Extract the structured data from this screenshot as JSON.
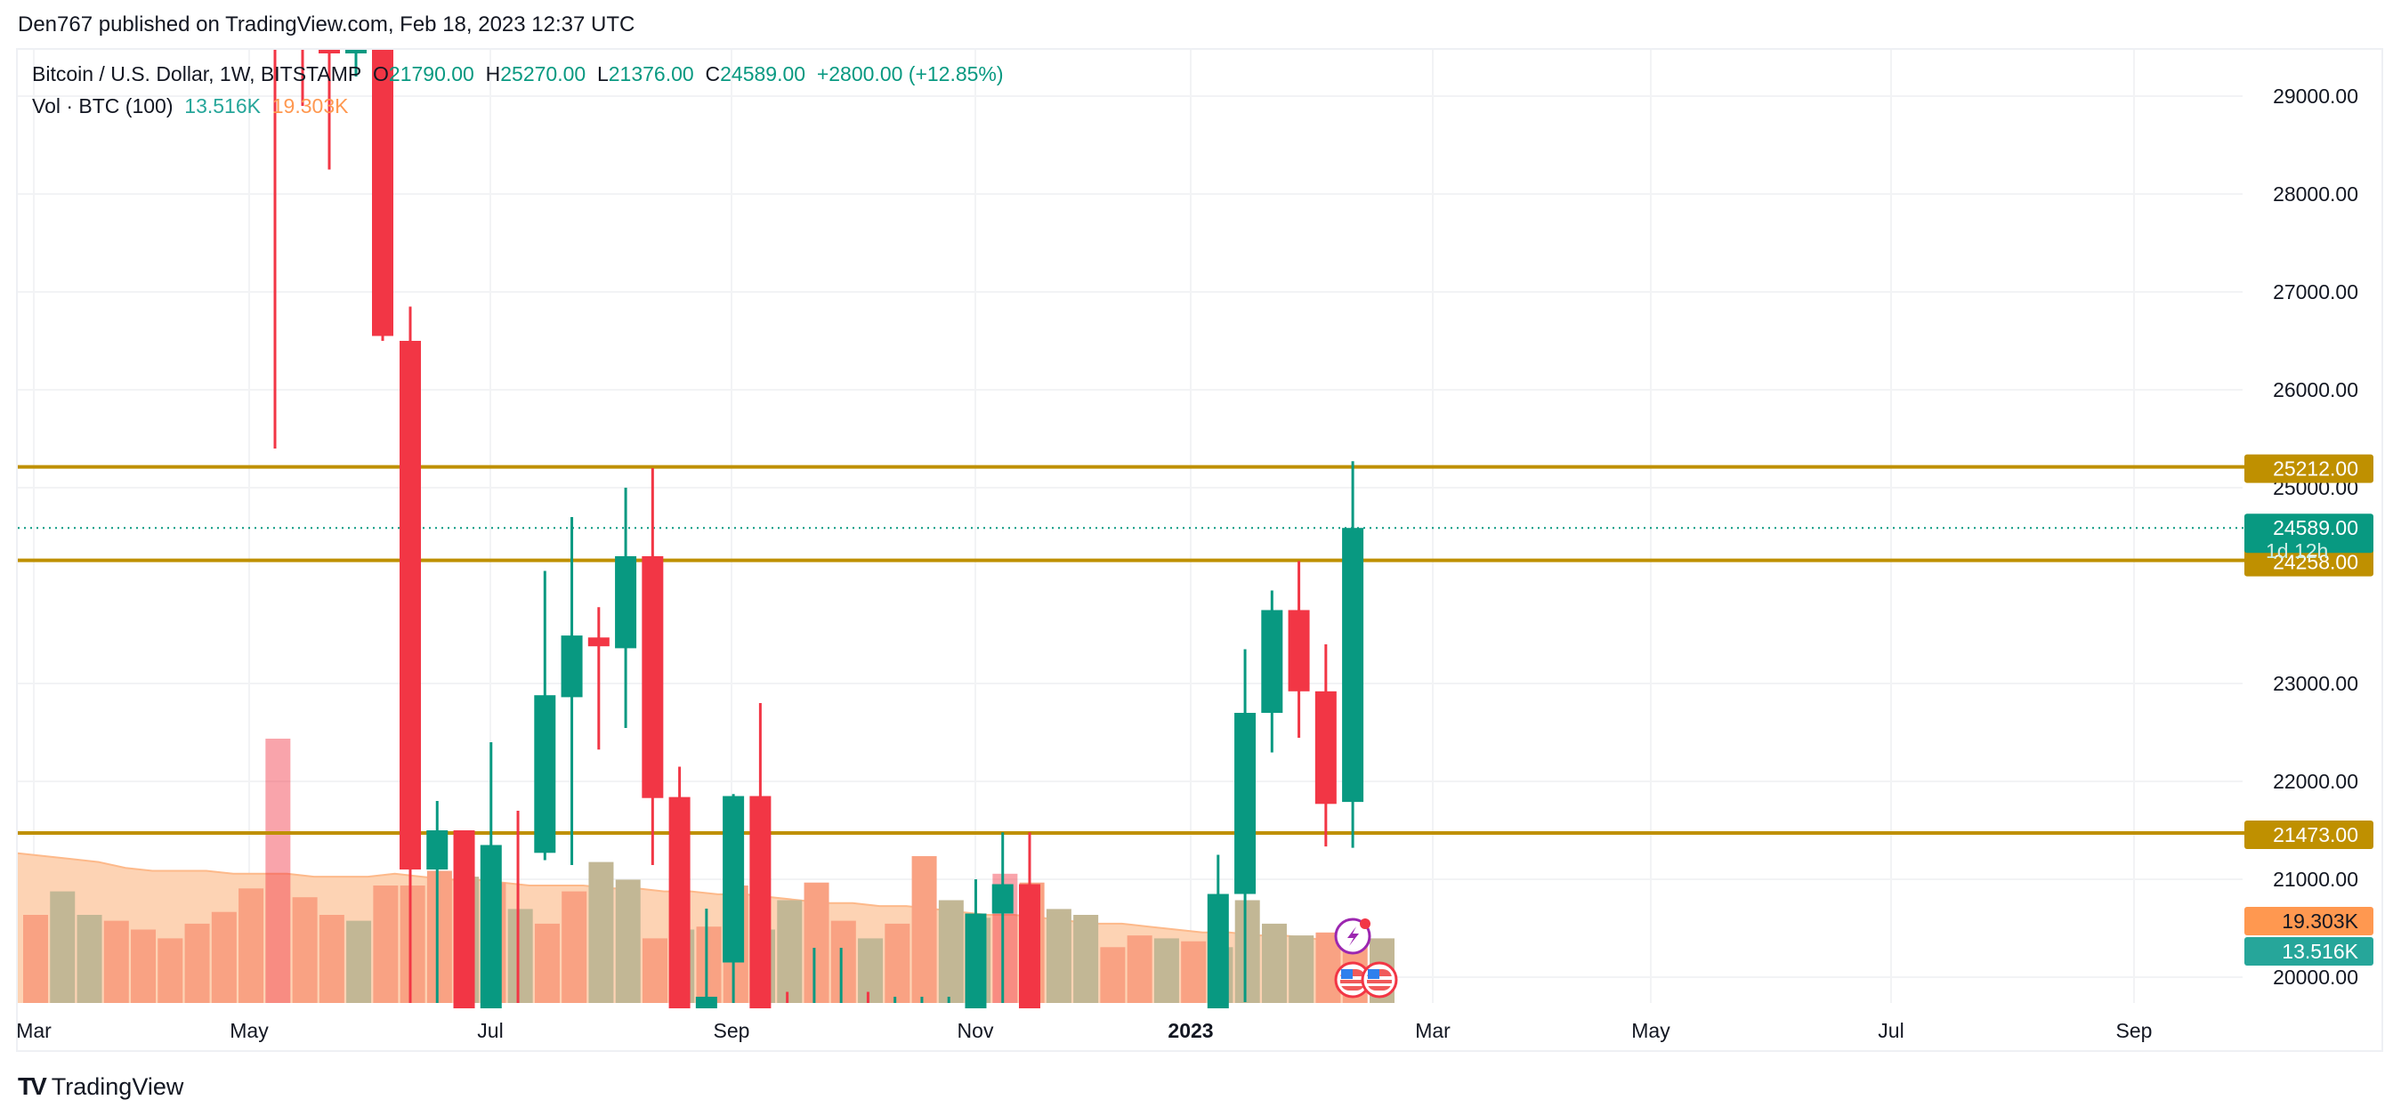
{
  "header": {
    "published": "Den767 published on TradingView.com, Feb 18, 2023 12:37 UTC"
  },
  "legend": {
    "symbol": "Bitcoin / U.S. Dollar, 1W, BITSTAMP",
    "o_label": "O",
    "o": "21790.00",
    "h_label": "H",
    "h": "25270.00",
    "l_label": "L",
    "l": "21376.00",
    "c_label": "C",
    "c": "24589.00",
    "change": "+2800.00 (+12.85%)",
    "vol_label": "Vol · BTC (100)",
    "vol_value": "13.516K",
    "vol_ma": "19.303K"
  },
  "footer": {
    "brand": "TradingView"
  },
  "colors": {
    "up": "#089981",
    "down": "#f23645",
    "level": "#bf9000",
    "vol_up": "#c2b795",
    "vol_down": "#f9a283",
    "vol_ma_fill": "#fdd1b0"
  },
  "chart_data": {
    "type": "candlestick",
    "title": "Bitcoin / U.S. Dollar, 1W, BITSTAMP",
    "timeframe": "1W",
    "y_ticks": [
      29000,
      28000,
      27000,
      26000,
      25000,
      23000,
      22000,
      21000,
      20000
    ],
    "ylim": [
      19700,
      29700
    ],
    "x_ticks": [
      {
        "label": "Mar",
        "x": 38
      },
      {
        "label": "May",
        "x": 280
      },
      {
        "label": "Jul",
        "x": 551
      },
      {
        "label": "Sep",
        "x": 822
      },
      {
        "label": "Nov",
        "x": 1096
      },
      {
        "label": "2023",
        "x": 1338,
        "bold": true
      },
      {
        "label": "Mar",
        "x": 1610
      },
      {
        "label": "May",
        "x": 1855
      },
      {
        "label": "Jul",
        "x": 2125
      },
      {
        "label": "Sep",
        "x": 2398
      }
    ],
    "horizontal_levels": [
      {
        "price": 25212,
        "label": "25212.00"
      },
      {
        "price": 24258,
        "label": "24258.00"
      },
      {
        "price": 21473,
        "label": "21473.00"
      }
    ],
    "last_price": {
      "price": 24589,
      "label": "24589.00",
      "countdown": "1d 12h"
    },
    "volume_labels": {
      "ma": "19.303K",
      "volume": "13.516K"
    },
    "early_wicks": [
      {
        "x": 309,
        "high": 29700,
        "low": 25400,
        "dir": "down"
      },
      {
        "x": 340,
        "high": 29700,
        "low": 28900,
        "dir": "down"
      },
      {
        "x": 370,
        "open": 29700,
        "close": 29580,
        "high": 29700,
        "low": 28250,
        "dir": "down"
      },
      {
        "x": 400,
        "open": 29580,
        "close": 29700,
        "high": 29700,
        "low": 29200,
        "dir": "up"
      },
      {
        "x": 430,
        "open": 29700,
        "close": 26550,
        "high": 29700,
        "low": 26500,
        "dir": "down"
      }
    ],
    "candles": [
      {
        "open": 26500,
        "close": 21100,
        "high": 26850,
        "low": 19700
      },
      {
        "open": 21100,
        "close": 21500,
        "high": 21800,
        "low": 19700
      },
      {
        "open": 21500,
        "close": 19700,
        "high": 21500,
        "low": 19700
      },
      {
        "open": 19700,
        "close": 21350,
        "high": 22400,
        "low": 19700
      },
      {
        "open": 21320,
        "close": 21290,
        "high": 21700,
        "low": 19700
      },
      {
        "open": 21270,
        "close": 22880,
        "high": 24150,
        "low": 21250
      },
      {
        "open": 22860,
        "close": 23490,
        "high": 24700,
        "low": 21200
      },
      {
        "open": 23470,
        "close": 23380,
        "high": 23780,
        "low": 22380
      },
      {
        "open": 23360,
        "close": 24300,
        "high": 25000,
        "low": 22600
      },
      {
        "open": 24300,
        "close": 21830,
        "high": 25200,
        "low": 21200
      },
      {
        "open": 21840,
        "close": 19700,
        "high": 22150,
        "low": 19700
      },
      {
        "open": 19700,
        "close": 19800,
        "high": 20700,
        "low": 19700
      },
      {
        "open": 20150,
        "close": 21850,
        "high": 21870,
        "low": 19700
      },
      {
        "open": 21850,
        "close": 19700,
        "high": 22800,
        "low": 19700
      },
      {
        "open": 19750,
        "close": 19700,
        "high": 19850,
        "low": 19700
      },
      {
        "open": 19700,
        "close": 19750,
        "high": 20300,
        "low": 19700
      },
      {
        "open": 19700,
        "close": 19750,
        "high": 20300,
        "low": 19700
      },
      {
        "open": 19750,
        "close": 19700,
        "high": 19850,
        "low": 19700
      },
      {
        "open": 19700,
        "close": 19720,
        "high": 19800,
        "low": 19700
      },
      {
        "open": 19700,
        "close": 19720,
        "high": 19800,
        "low": 19700
      },
      {
        "open": 19700,
        "close": 19720,
        "high": 19800,
        "low": 19700
      },
      {
        "open": 19700,
        "close": 20650,
        "high": 21000,
        "low": 19700
      },
      {
        "open": 20650,
        "close": 20950,
        "high": 21480,
        "low": 19700
      },
      {
        "open": 20950,
        "close": 19700,
        "high": 21480,
        "low": 19700
      },
      {
        "open": 19700,
        "close": 19700,
        "high": 19700,
        "low": 19700
      },
      {
        "open": 19700,
        "close": 19700,
        "high": 19700,
        "low": 19700
      },
      {
        "open": 19700,
        "close": 19700,
        "high": 19700,
        "low": 19700
      },
      {
        "open": 19700,
        "close": 19700,
        "high": 19700,
        "low": 19700
      },
      {
        "open": 19700,
        "close": 19700,
        "high": 19700,
        "low": 19700
      },
      {
        "open": 19700,
        "close": 19700,
        "high": 19700,
        "low": 19700
      },
      {
        "open": 19700,
        "close": 20850,
        "high": 21250,
        "low": 19700
      },
      {
        "open": 20850,
        "close": 22700,
        "high": 23350,
        "low": 19800
      },
      {
        "open": 22700,
        "close": 23750,
        "high": 23950,
        "low": 22350
      },
      {
        "open": 23750,
        "close": 22920,
        "high": 24250,
        "low": 22500
      },
      {
        "open": 22920,
        "close": 21770,
        "high": 23400,
        "low": 21390
      },
      {
        "open": 21790,
        "close": 24589,
        "high": 25270,
        "low": 21376
      }
    ],
    "volume": [
      {
        "v": 0.3,
        "dir": "down"
      },
      {
        "v": 0.38,
        "dir": "up"
      },
      {
        "v": 0.3,
        "dir": "up"
      },
      {
        "v": 0.28,
        "dir": "down"
      },
      {
        "v": 0.25,
        "dir": "down"
      },
      {
        "v": 0.22,
        "dir": "down"
      },
      {
        "v": 0.27,
        "dir": "down"
      },
      {
        "v": 0.31,
        "dir": "down"
      },
      {
        "v": 0.39,
        "dir": "down"
      },
      {
        "v": 0.9,
        "dir": "down",
        "highlight": true
      },
      {
        "v": 0.36,
        "dir": "down"
      },
      {
        "v": 0.3,
        "dir": "down"
      },
      {
        "v": 0.28,
        "dir": "up"
      },
      {
        "v": 0.4,
        "dir": "down"
      },
      {
        "v": 0.4,
        "dir": "down"
      },
      {
        "v": 0.45,
        "dir": "down"
      },
      {
        "v": 0.43,
        "dir": "up"
      },
      {
        "v": 0.41,
        "dir": "down"
      },
      {
        "v": 0.32,
        "dir": "up"
      },
      {
        "v": 0.27,
        "dir": "down"
      },
      {
        "v": 0.38,
        "dir": "down"
      },
      {
        "v": 0.48,
        "dir": "up"
      },
      {
        "v": 0.42,
        "dir": "up"
      },
      {
        "v": 0.22,
        "dir": "down"
      },
      {
        "v": 0.25,
        "dir": "up"
      },
      {
        "v": 0.26,
        "dir": "down"
      },
      {
        "v": 0.4,
        "dir": "down"
      },
      {
        "v": 0.25,
        "dir": "up"
      },
      {
        "v": 0.35,
        "dir": "up"
      },
      {
        "v": 0.41,
        "dir": "down"
      },
      {
        "v": 0.28,
        "dir": "down"
      },
      {
        "v": 0.22,
        "dir": "up"
      },
      {
        "v": 0.27,
        "dir": "down"
      },
      {
        "v": 0.5,
        "dir": "down"
      },
      {
        "v": 0.35,
        "dir": "up"
      },
      {
        "v": 0.29,
        "dir": "up"
      },
      {
        "v": 0.44,
        "dir": "down",
        "highlight": true
      },
      {
        "v": 0.41,
        "dir": "down"
      },
      {
        "v": 0.32,
        "dir": "up"
      },
      {
        "v": 0.3,
        "dir": "up"
      },
      {
        "v": 0.19,
        "dir": "down"
      },
      {
        "v": 0.23,
        "dir": "down"
      },
      {
        "v": 0.22,
        "dir": "up"
      },
      {
        "v": 0.21,
        "dir": "down"
      },
      {
        "v": 0.19,
        "dir": "up"
      },
      {
        "v": 0.35,
        "dir": "up"
      },
      {
        "v": 0.27,
        "dir": "up"
      },
      {
        "v": 0.23,
        "dir": "up"
      },
      {
        "v": 0.24,
        "dir": "down"
      },
      {
        "v": 0.22,
        "dir": "down"
      },
      {
        "v": 0.22,
        "dir": "up"
      }
    ],
    "volume_ma": [
      0.51,
      0.5,
      0.49,
      0.48,
      0.46,
      0.45,
      0.45,
      0.45,
      0.44,
      0.44,
      0.44,
      0.43,
      0.43,
      0.43,
      0.44,
      0.43,
      0.42,
      0.42,
      0.41,
      0.4,
      0.4,
      0.4,
      0.39,
      0.39,
      0.38,
      0.38,
      0.37,
      0.37,
      0.36,
      0.35,
      0.34,
      0.34,
      0.33,
      0.33,
      0.32,
      0.31,
      0.3,
      0.3,
      0.29,
      0.28,
      0.27,
      0.27,
      0.26,
      0.25,
      0.24,
      0.24,
      0.23,
      0.23,
      0.22,
      0.21,
      0.21
    ],
    "events": [
      {
        "type": "lightning",
        "x": 1520
      },
      {
        "type": "us-flag",
        "x": 1520
      },
      {
        "type": "us-flag",
        "x": 1550
      }
    ]
  }
}
